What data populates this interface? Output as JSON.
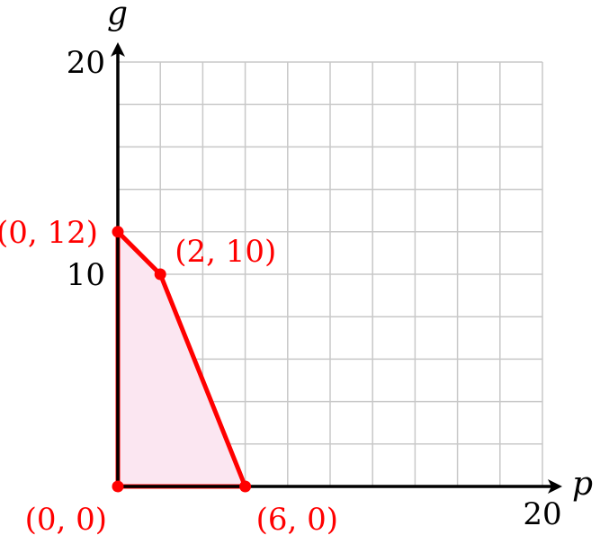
{
  "chart_data": {
    "type": "area",
    "xlabel": "p",
    "ylabel": "g",
    "xlim": [
      0,
      20
    ],
    "ylim": [
      0,
      20
    ],
    "grid": true,
    "grid_step": 2,
    "x_ticks": [
      "20"
    ],
    "y_ticks": [
      "10",
      "20"
    ],
    "region": {
      "vertices": [
        [
          0,
          0
        ],
        [
          0,
          12
        ],
        [
          2,
          10
        ],
        [
          6,
          0
        ]
      ],
      "edge_color": "#ff0000",
      "fill_color": "#fbe6f1"
    },
    "points": [
      {
        "x": 0,
        "y": 12,
        "label": "(0, 12)"
      },
      {
        "x": 2,
        "y": 10,
        "label": "(2, 10)"
      },
      {
        "x": 0,
        "y": 0,
        "label": "(0, 0)"
      },
      {
        "x": 6,
        "y": 0,
        "label": "(6, 0)"
      }
    ],
    "colors": {
      "grid": "#c8c8c8",
      "axis": "#000000",
      "accent": "#ff0000"
    }
  }
}
